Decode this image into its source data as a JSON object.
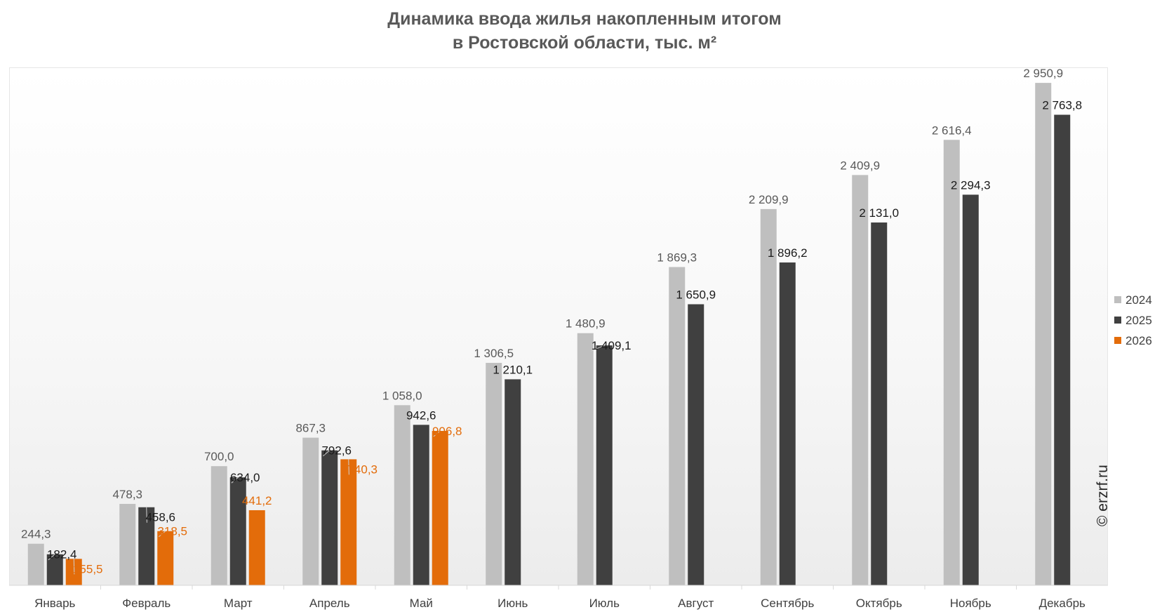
{
  "chart_data": {
    "type": "bar",
    "title": [
      "Динамика ввода жилья накопленным итогом",
      "в Ростовской области, тыс. м²"
    ],
    "categories": [
      "Январь",
      "Февраль",
      "Март",
      "Апрель",
      "Май",
      "Июнь",
      "Июль",
      "Август",
      "Сентябрь",
      "Октябрь",
      "Ноябрь",
      "Декабрь"
    ],
    "series": [
      {
        "name": "2024",
        "color": "#bfbfbf",
        "label_color": "#595959",
        "values": [
          244.3,
          478.3,
          700.0,
          867.3,
          1058.0,
          1306.5,
          1480.9,
          1869.3,
          2209.9,
          2409.9,
          2616.4,
          2950.9
        ],
        "labels": [
          "244,3",
          "478,3",
          "700,0",
          "867,3",
          "1 058,0",
          "1 306,5",
          "1 480,9",
          "1 869,3",
          "2 209,9",
          "2 409,9",
          "2 616,4",
          "2 950,9"
        ]
      },
      {
        "name": "2025",
        "color": "#404040",
        "label_color": "#1a1a1a",
        "values": [
          182.4,
          458.6,
          634.0,
          792.6,
          942.6,
          1210.1,
          1409.1,
          1650.9,
          1896.2,
          2131.0,
          2294.3,
          2763.8
        ],
        "labels": [
          "182,4",
          "458,6",
          "634,0",
          "792,6",
          "942,6",
          "1 210,1",
          "1 409,1",
          "1 650,9",
          "1 896,2",
          "2 131,0",
          "2 294,3",
          "2 763,8"
        ]
      },
      {
        "name": "2026",
        "color": "#e36c0a",
        "label_color": "#e36c0a",
        "values": [
          155.5,
          318.5,
          441.2,
          740.3,
          906.8,
          null,
          null,
          null,
          null,
          null,
          null,
          null
        ],
        "labels": [
          "155,5",
          "318,5",
          "441,2",
          "740,3",
          "906,8",
          null,
          null,
          null,
          null,
          null,
          null,
          null
        ]
      }
    ],
    "xlabel": "",
    "ylabel": "",
    "ylim": [
      0,
      3300
    ],
    "grid": false,
    "legend_position": "right"
  },
  "watermark": "© erzrf.ru"
}
